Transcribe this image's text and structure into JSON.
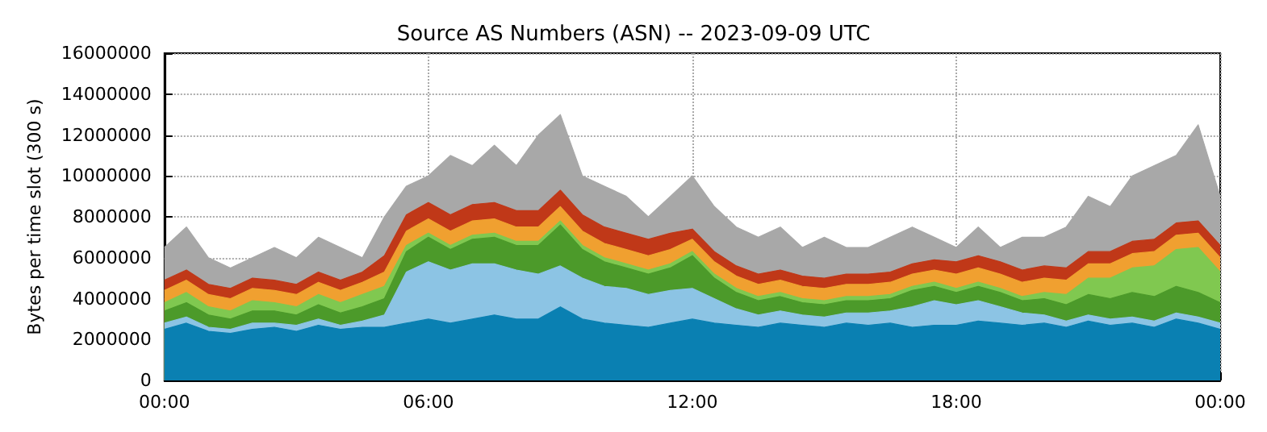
{
  "chart_data": {
    "type": "area",
    "title": "Source AS Numbers (ASN) -- 2023-09-09 UTC",
    "ylabel": "Bytes per time slot (300 s)",
    "stacked": true,
    "grid": true,
    "marker": "none",
    "x": [
      0,
      0.5,
      1,
      1.5,
      2,
      2.5,
      3,
      3.5,
      4,
      4.5,
      5,
      5.5,
      6,
      6.5,
      7,
      7.5,
      8,
      8.5,
      9,
      9.5,
      10,
      10.5,
      11,
      11.5,
      12,
      12.5,
      13,
      13.5,
      14,
      14.5,
      15,
      15.5,
      16,
      16.5,
      17,
      17.5,
      18,
      18.5,
      19,
      19.5,
      20,
      20.5,
      21,
      21.5,
      22,
      22.5,
      23,
      23.5,
      24
    ],
    "xlim": [
      0,
      24
    ],
    "xticks": [
      {
        "value": 0,
        "label": "00:00"
      },
      {
        "value": 6,
        "label": "06:00"
      },
      {
        "value": 12,
        "label": "12:00"
      },
      {
        "value": 18,
        "label": "18:00"
      },
      {
        "value": 24,
        "label": "00:00"
      }
    ],
    "ylim": [
      0,
      16000000
    ],
    "yticks": [
      0,
      2000000,
      4000000,
      6000000,
      8000000,
      10000000,
      12000000,
      14000000,
      16000000
    ],
    "series": [
      {
        "color": "#0a80b2",
        "values": [
          2500000.0,
          2800000.0,
          2400000.0,
          2300000.0,
          2500000.0,
          2600000.0,
          2400000.0,
          2700000.0,
          2500000.0,
          2600000.0,
          2600000.0,
          2800000.0,
          3000000.0,
          2800000.0,
          3000000.0,
          3200000.0,
          3000000.0,
          3000000.0,
          3600000.0,
          3000000.0,
          2800000.0,
          2700000.0,
          2600000.0,
          2800000.0,
          3000000.0,
          2800000.0,
          2700000.0,
          2600000.0,
          2800000.0,
          2700000.0,
          2600000.0,
          2800000.0,
          2700000.0,
          2800000.0,
          2600000.0,
          2700000.0,
          2700000.0,
          2900000.0,
          2800000.0,
          2700000.0,
          2800000.0,
          2600000.0,
          2900000.0,
          2700000.0,
          2800000.0,
          2600000.0,
          3000000.0,
          2800000.0,
          2500000.0
        ]
      },
      {
        "color": "#8cc4e4",
        "values": [
          300000.0,
          300000.0,
          200000.0,
          200000.0,
          300000.0,
          200000.0,
          300000.0,
          300000.0,
          200000.0,
          300000.0,
          600000.0,
          2500000.0,
          2800000.0,
          2600000.0,
          2700000.0,
          2500000.0,
          2400000.0,
          2200000.0,
          2000000.0,
          2000000.0,
          1800000.0,
          1800000.0,
          1600000.0,
          1600000.0,
          1500000.0,
          1200000.0,
          800000.0,
          600000.0,
          600000.0,
          500000.0,
          500000.0,
          500000.0,
          600000.0,
          600000.0,
          1000000.0,
          1200000.0,
          1000000.0,
          1000000.0,
          800000.0,
          600000.0,
          400000.0,
          300000.0,
          300000.0,
          300000.0,
          300000.0,
          300000.0,
          300000.0,
          300000.0,
          300000.0
        ]
      },
      {
        "color": "#4c9a2a",
        "values": [
          600000.0,
          700000.0,
          600000.0,
          500000.0,
          600000.0,
          600000.0,
          500000.0,
          700000.0,
          600000.0,
          700000.0,
          800000.0,
          1000000.0,
          1200000.0,
          1000000.0,
          1200000.0,
          1300000.0,
          1200000.0,
          1400000.0,
          2000000.0,
          1400000.0,
          1200000.0,
          1000000.0,
          1000000.0,
          1100000.0,
          1600000.0,
          1000000.0,
          800000.0,
          700000.0,
          700000.0,
          600000.0,
          600000.0,
          600000.0,
          600000.0,
          600000.0,
          800000.0,
          700000.0,
          600000.0,
          700000.0,
          700000.0,
          600000.0,
          800000.0,
          800000.0,
          1000000.0,
          1000000.0,
          1200000.0,
          1200000.0,
          1300000.0,
          1200000.0,
          1000000.0
        ]
      },
      {
        "color": "#80c850",
        "values": [
          400000.0,
          500000.0,
          400000.0,
          400000.0,
          500000.0,
          400000.0,
          400000.0,
          500000.0,
          500000.0,
          600000.0,
          600000.0,
          300000.0,
          200000.0,
          200000.0,
          200000.0,
          200000.0,
          200000.0,
          200000.0,
          200000.0,
          200000.0,
          200000.0,
          200000.0,
          200000.0,
          200000.0,
          200000.0,
          200000.0,
          200000.0,
          200000.0,
          200000.0,
          200000.0,
          200000.0,
          200000.0,
          200000.0,
          200000.0,
          200000.0,
          200000.0,
          200000.0,
          200000.0,
          200000.0,
          200000.0,
          300000.0,
          500000.0,
          800000.0,
          1000000.0,
          1200000.0,
          1500000.0,
          1800000.0,
          2200000.0,
          1500000.0
        ]
      },
      {
        "color": "#f0a030",
        "values": [
          600000.0,
          600000.0,
          600000.0,
          600000.0,
          600000.0,
          600000.0,
          600000.0,
          600000.0,
          600000.0,
          600000.0,
          700000.0,
          700000.0,
          700000.0,
          700000.0,
          700000.0,
          700000.0,
          700000.0,
          700000.0,
          700000.0,
          700000.0,
          700000.0,
          700000.0,
          700000.0,
          700000.0,
          600000.0,
          600000.0,
          600000.0,
          600000.0,
          600000.0,
          600000.0,
          600000.0,
          600000.0,
          600000.0,
          600000.0,
          600000.0,
          600000.0,
          700000.0,
          700000.0,
          700000.0,
          700000.0,
          700000.0,
          700000.0,
          700000.0,
          700000.0,
          700000.0,
          700000.0,
          700000.0,
          700000.0,
          700000.0
        ]
      },
      {
        "color": "#c03818",
        "values": [
          500000.0,
          500000.0,
          500000.0,
          500000.0,
          500000.0,
          500000.0,
          500000.0,
          500000.0,
          500000.0,
          500000.0,
          800000.0,
          800000.0,
          800000.0,
          800000.0,
          800000.0,
          800000.0,
          800000.0,
          800000.0,
          800000.0,
          800000.0,
          800000.0,
          800000.0,
          800000.0,
          800000.0,
          500000.0,
          500000.0,
          500000.0,
          500000.0,
          500000.0,
          500000.0,
          500000.0,
          500000.0,
          500000.0,
          500000.0,
          500000.0,
          500000.0,
          600000.0,
          600000.0,
          600000.0,
          600000.0,
          600000.0,
          600000.0,
          600000.0,
          600000.0,
          600000.0,
          600000.0,
          600000.0,
          600000.0,
          600000.0
        ]
      },
      {
        "color": "#a8a8a8",
        "values": [
          1600000.0,
          2100000.0,
          1300000.0,
          1000000.0,
          1000000.0,
          1600000.0,
          1300000.0,
          1700000.0,
          1600000.0,
          700000.0,
          1900000.0,
          1400000.0,
          1300000.0,
          2900000.0,
          1900000.0,
          2800000.0,
          2200000.0,
          3700000.0,
          3700000.0,
          1900000.0,
          2000000.0,
          1800000.0,
          1100000.0,
          1800000.0,
          2600000.0,
          2200000.0,
          1900000.0,
          1800000.0,
          2100000.0,
          1400000.0,
          2000000.0,
          1300000.0,
          1300000.0,
          1700000.0,
          1800000.0,
          1100000.0,
          700000.0,
          1400000.0,
          700000.0,
          1600000.0,
          1400000.0,
          2000000.0,
          2700000.0,
          2200000.0,
          3200000.0,
          3600000.0,
          3300000.0,
          4700000.0,
          2400000.0
        ]
      }
    ]
  }
}
